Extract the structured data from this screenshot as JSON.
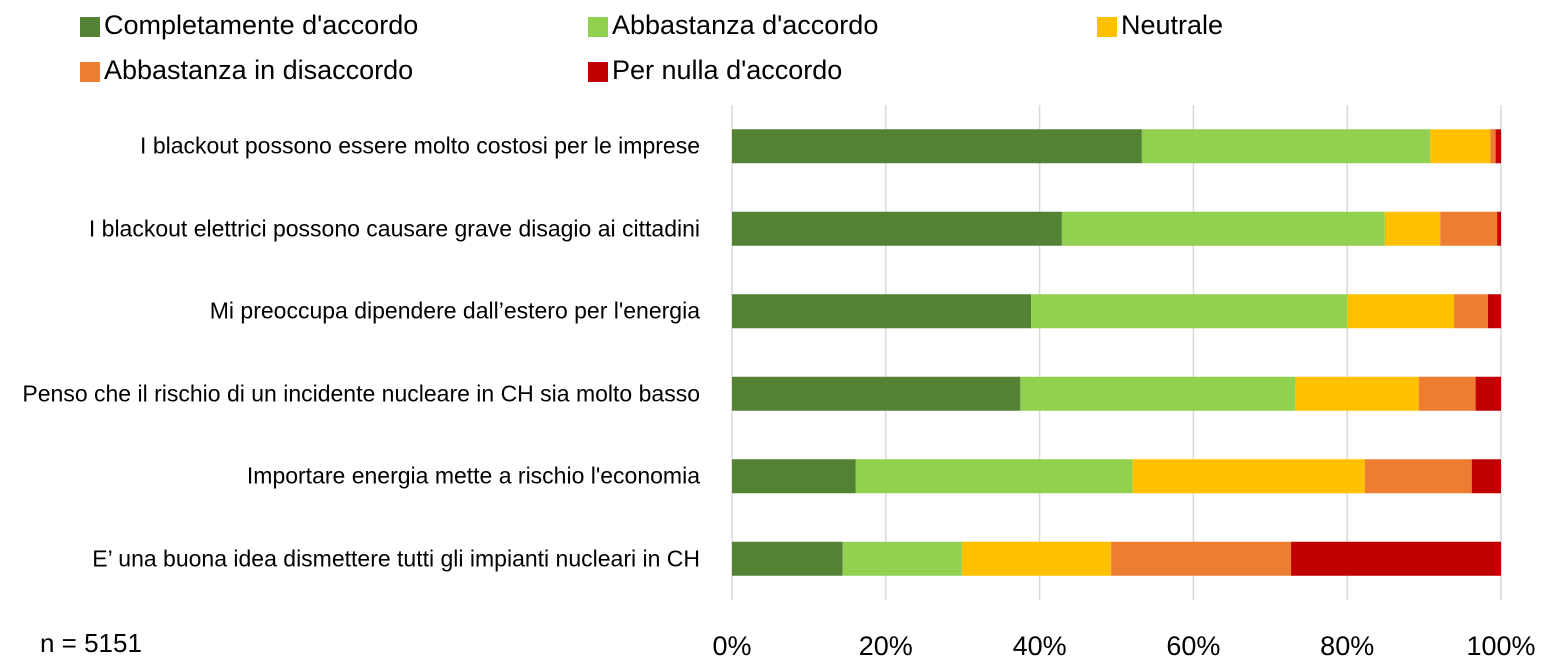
{
  "chart_data": {
    "type": "stacked-bar-horizontal",
    "categories": [
      "I blackout possono essere molto costosi per le imprese",
      "I blackout elettrici possono causare grave disagio ai cittadini",
      "Mi preoccupa dipendere dall’estero per l'energia",
      "Penso che il rischio di un incidente nucleare in CH sia molto basso",
      "Importare energia mette a rischio l'economia",
      "E’ una buona idea dismettere tutti gli impianti nucleari in CH"
    ],
    "series": [
      {
        "name": "Completamente d'accordo",
        "color": "#548235",
        "values": [
          53.3,
          42.9,
          38.9,
          37.5,
          16.1,
          14.4
        ]
      },
      {
        "name": "Abbastanza d'accordo",
        "color": "#92d050",
        "values": [
          37.5,
          42.0,
          41.1,
          35.8,
          36.0,
          15.5
        ]
      },
      {
        "name": "Neutrale",
        "color": "#ffc000",
        "values": [
          7.8,
          7.2,
          13.9,
          16.0,
          30.2,
          19.4
        ]
      },
      {
        "name": "Abbastanza in disaccordo",
        "color": "#ed7d31",
        "values": [
          0.7,
          7.4,
          4.4,
          7.4,
          13.9,
          23.4
        ]
      },
      {
        "name": "Per nulla d'accordo",
        "color": "#c00000",
        "values": [
          0.7,
          0.5,
          1.7,
          3.3,
          3.8,
          27.3
        ]
      }
    ],
    "xlim": [
      0,
      100
    ],
    "xticks": [
      {
        "value": 0,
        "label": "0%"
      },
      {
        "value": 20,
        "label": "20%"
      },
      {
        "value": 40,
        "label": "40%"
      },
      {
        "value": 60,
        "label": "60%"
      },
      {
        "value": 80,
        "label": "80%"
      },
      {
        "value": 100,
        "label": "100%"
      }
    ],
    "grid": true,
    "note": "n = 5151"
  }
}
